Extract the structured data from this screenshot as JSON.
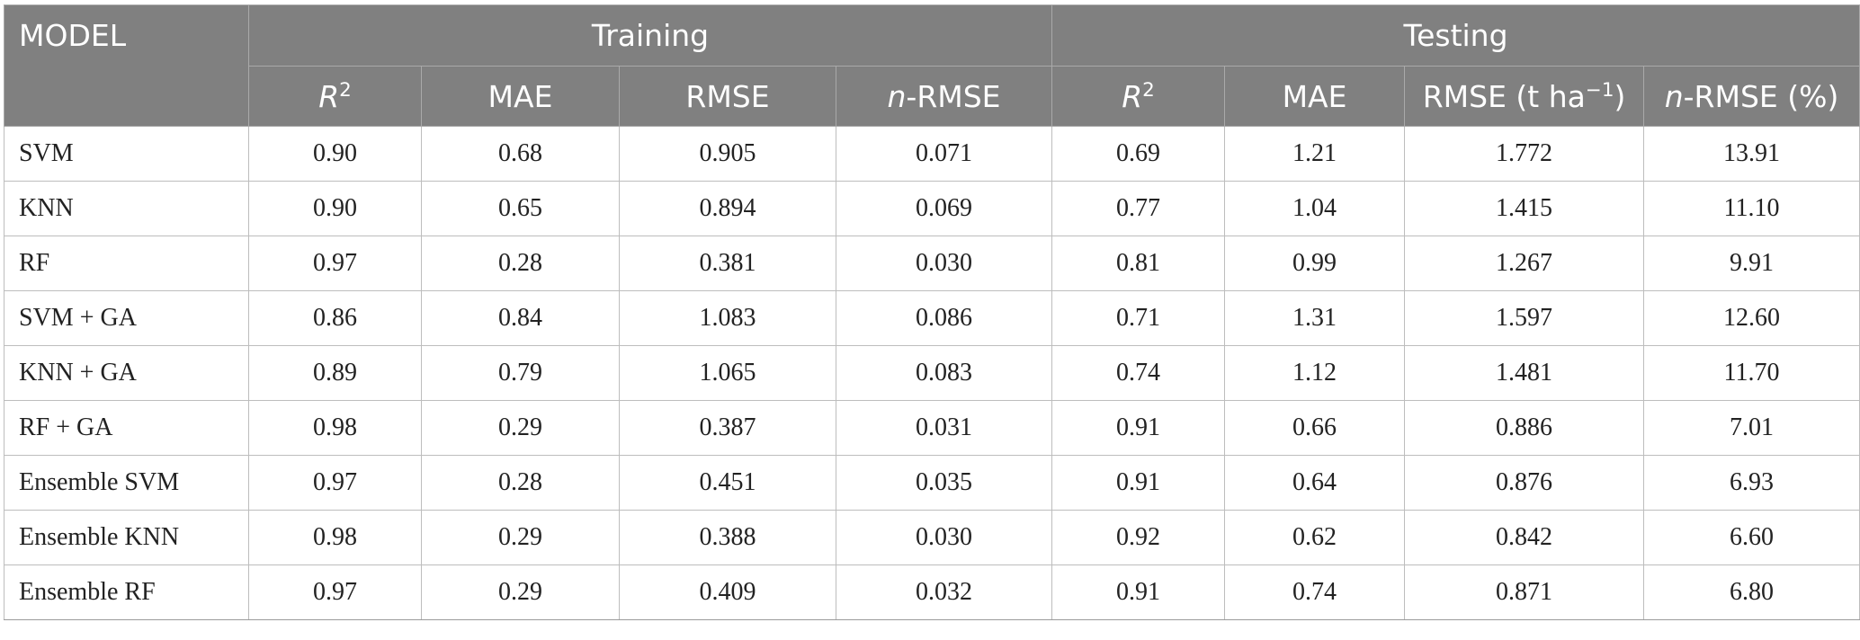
{
  "table": {
    "model_header": "MODEL",
    "group_headers": {
      "training": "Training",
      "testing": "Testing"
    },
    "training_columns": [
      {
        "main": "R",
        "sup": "2",
        "rest": "",
        "italic": true
      },
      {
        "main": "MAE",
        "sup": "",
        "rest": "",
        "italic": false
      },
      {
        "main": "RMSE",
        "sup": "",
        "rest": "",
        "italic": false
      },
      {
        "main": "n",
        "sup": "",
        "rest": "-RMSE",
        "italic": true
      }
    ],
    "testing_columns": [
      {
        "main": "R",
        "sup": "2",
        "rest": "",
        "italic": true
      },
      {
        "main": "MAE",
        "sup": "",
        "rest": "",
        "italic": false
      },
      {
        "main": "RMSE (t ha",
        "sup": "−1",
        "rest": ")",
        "italic": false
      },
      {
        "main": "n",
        "sup": "",
        "rest": "-RMSE (%)",
        "italic": true
      }
    ],
    "rows": [
      {
        "model": "SVM",
        "training": [
          "0.90",
          "0.68",
          "0.905",
          "0.071"
        ],
        "testing": [
          "0.69",
          "1.21",
          "1.772",
          "13.91"
        ]
      },
      {
        "model": "KNN",
        "training": [
          "0.90",
          "0.65",
          "0.894",
          "0.069"
        ],
        "testing": [
          "0.77",
          "1.04",
          "1.415",
          "11.10"
        ]
      },
      {
        "model": "RF",
        "training": [
          "0.97",
          "0.28",
          "0.381",
          "0.030"
        ],
        "testing": [
          "0.81",
          "0.99",
          "1.267",
          "9.91"
        ]
      },
      {
        "model": "SVM + GA",
        "training": [
          "0.86",
          "0.84",
          "1.083",
          "0.086"
        ],
        "testing": [
          "0.71",
          "1.31",
          "1.597",
          "12.60"
        ]
      },
      {
        "model": "KNN + GA",
        "training": [
          "0.89",
          "0.79",
          "1.065",
          "0.083"
        ],
        "testing": [
          "0.74",
          "1.12",
          "1.481",
          "11.70"
        ]
      },
      {
        "model": "RF + GA",
        "training": [
          "0.98",
          "0.29",
          "0.387",
          "0.031"
        ],
        "testing": [
          "0.91",
          "0.66",
          "0.886",
          "7.01"
        ]
      },
      {
        "model": "Ensemble SVM",
        "training": [
          "0.97",
          "0.28",
          "0.451",
          "0.035"
        ],
        "testing": [
          "0.91",
          "0.64",
          "0.876",
          "6.93"
        ]
      },
      {
        "model": "Ensemble KNN",
        "training": [
          "0.98",
          "0.29",
          "0.388",
          "0.030"
        ],
        "testing": [
          "0.92",
          "0.62",
          "0.842",
          "6.60"
        ]
      },
      {
        "model": "Ensemble RF",
        "training": [
          "0.97",
          "0.29",
          "0.409",
          "0.032"
        ],
        "testing": [
          "0.91",
          "0.74",
          "0.871",
          "6.80"
        ]
      }
    ]
  },
  "colors": {
    "header_bg": "#808080",
    "header_text": "#ffffff",
    "grid_line": "#bdbdbd",
    "body_text": "#222222"
  }
}
